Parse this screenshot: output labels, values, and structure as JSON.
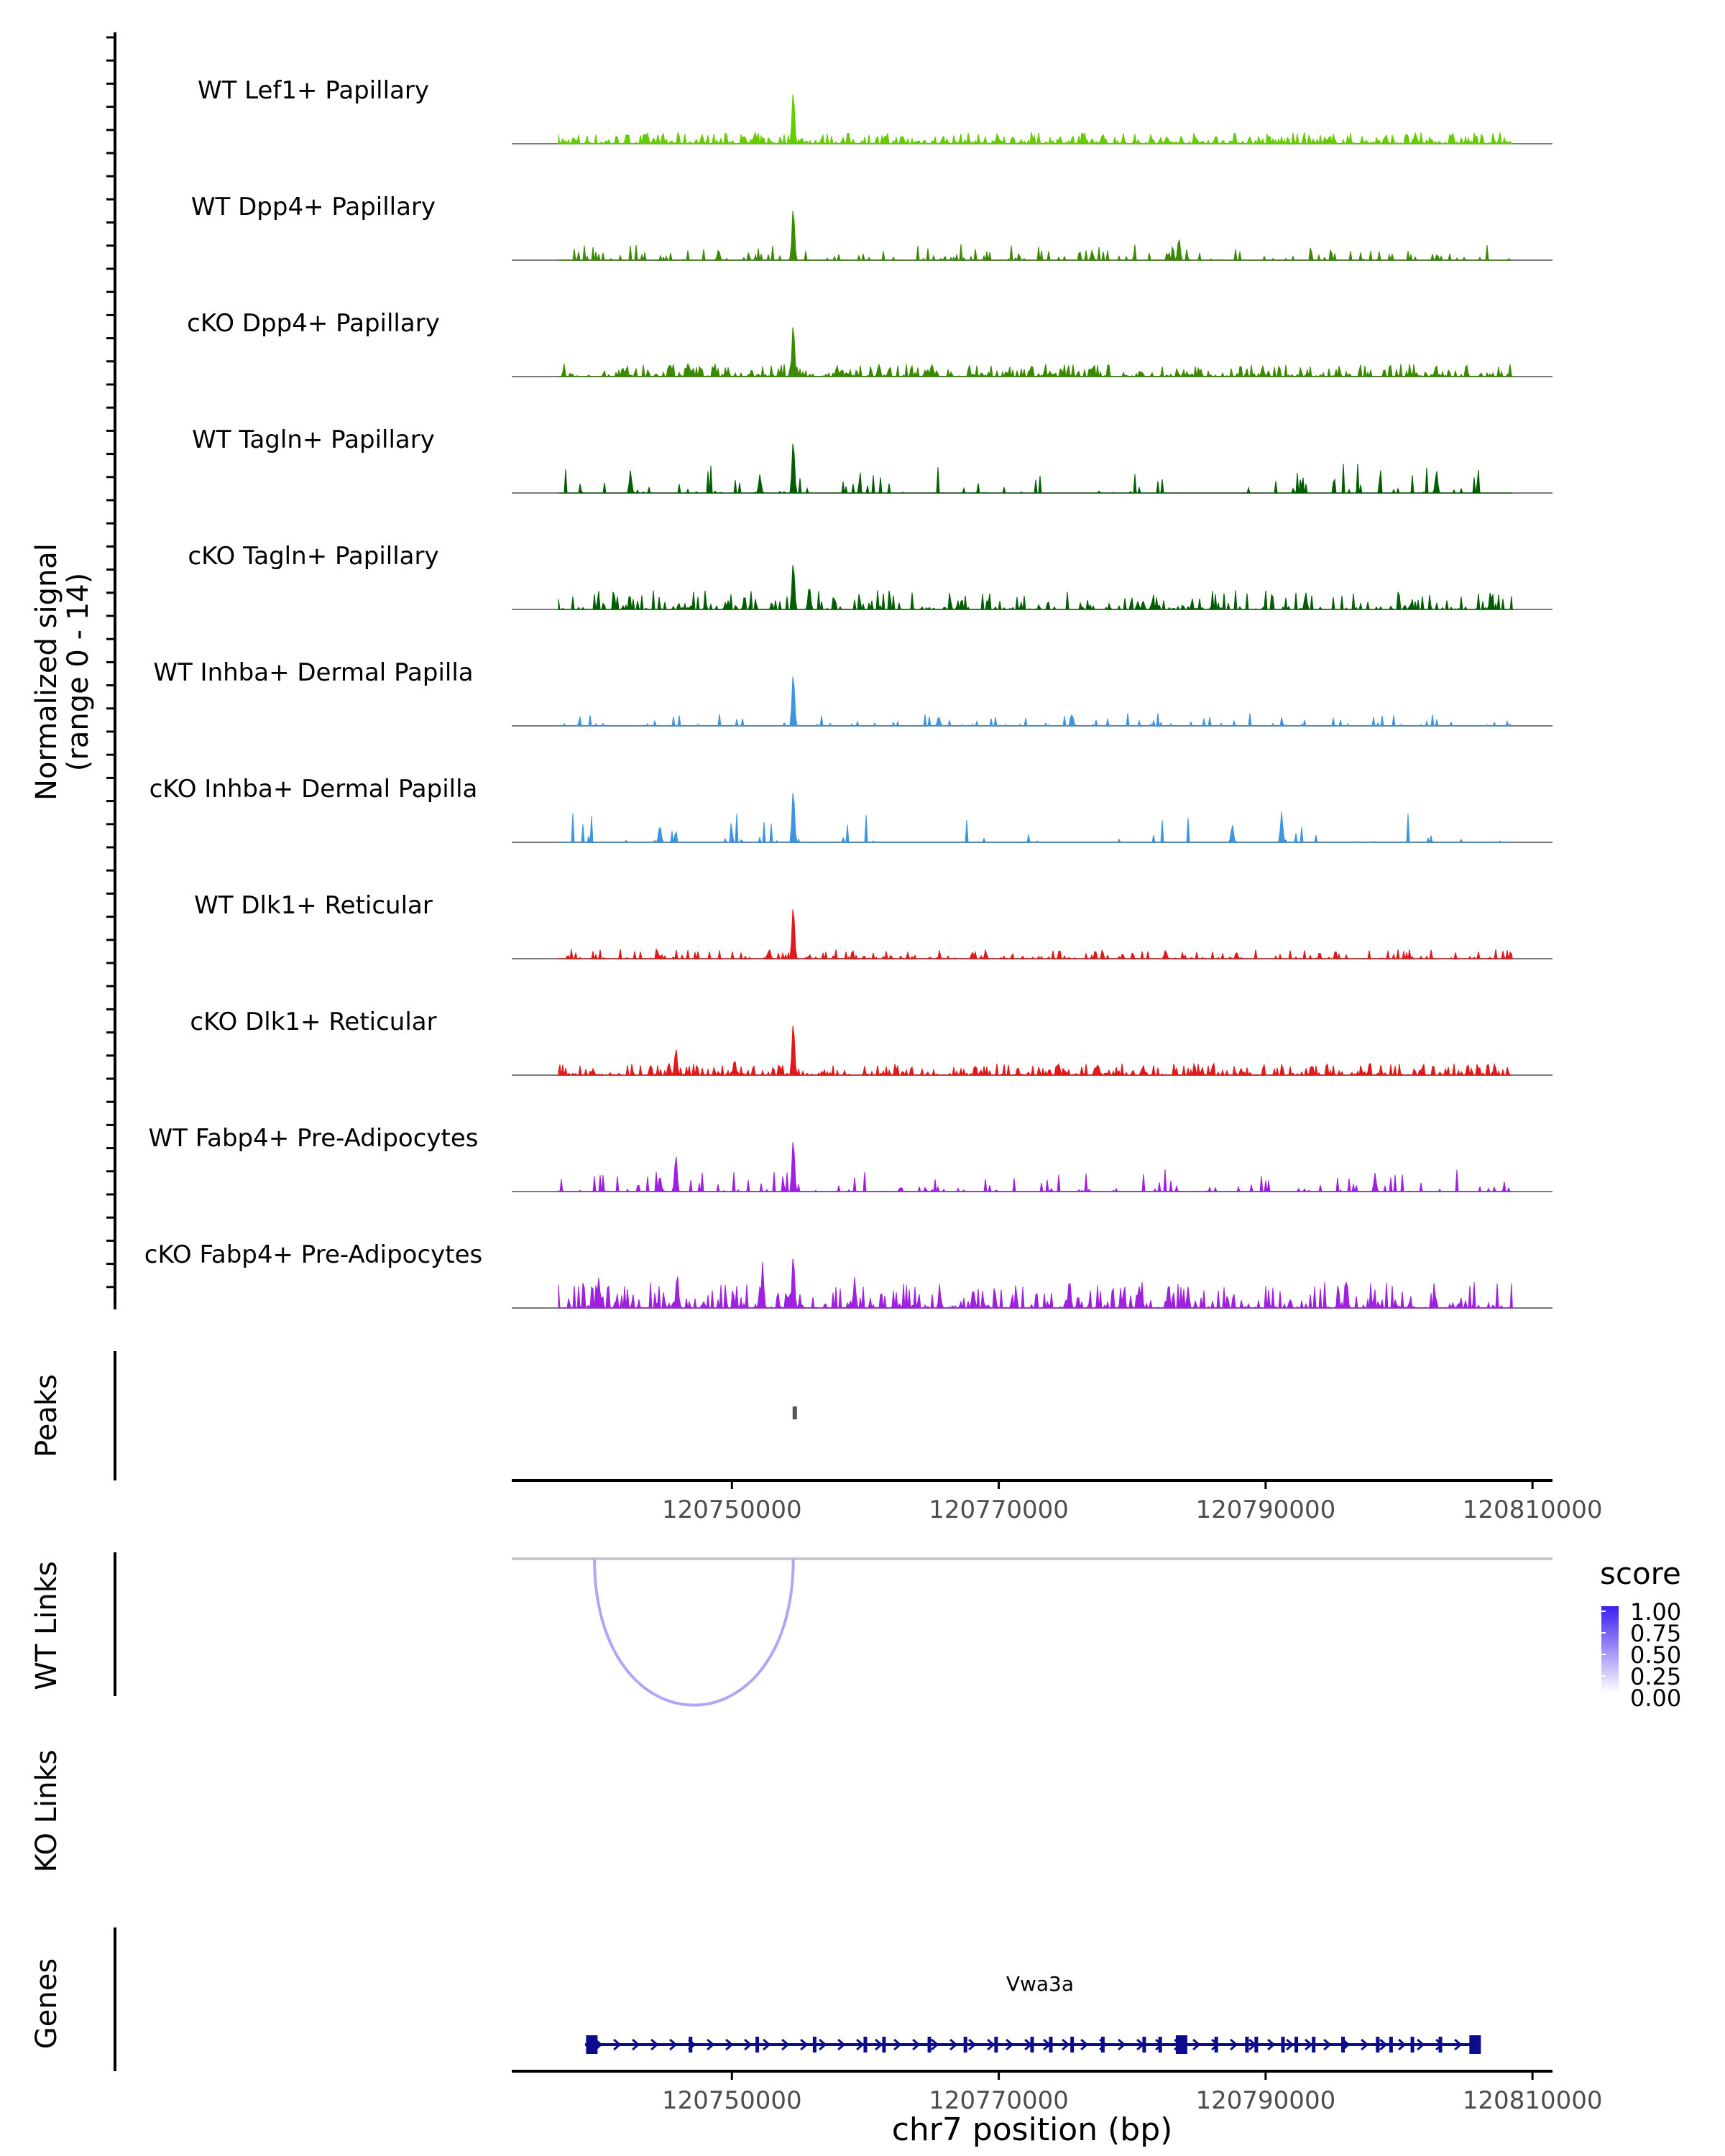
{
  "chart_data": {
    "type": "area",
    "title": "",
    "region": "chr7",
    "x_range": [
      120733500,
      120811500
    ],
    "coverage": {
      "ylabel_line1": "Normalized signal",
      "ylabel_line2": "(range 0 - 14)",
      "yrange": [
        0,
        14
      ],
      "tracks": [
        {
          "label": "WT Lef1+ Papillary",
          "color": "#66cc00",
          "density": 1.0,
          "noise": 0.18,
          "peaks": [
            [
              120754600,
              1.0
            ],
            [
              120751800,
              0.12
            ],
            [
              120738200,
              0.08
            ]
          ]
        },
        {
          "label": "WT Dpp4+ Papillary",
          "color": "#3a8a00",
          "density": 0.35,
          "noise": 0.25,
          "peaks": [
            [
              120754600,
              1.0
            ],
            [
              120783500,
              0.42
            ],
            [
              120749000,
              0.2
            ],
            [
              120777000,
              0.15
            ]
          ]
        },
        {
          "label": "cKO Dpp4+ Papillary",
          "color": "#3a8a00",
          "density": 0.8,
          "noise": 0.2,
          "peaks": [
            [
              120754600,
              1.0
            ],
            [
              120761000,
              0.22
            ],
            [
              120746800,
              0.15
            ]
          ]
        },
        {
          "label": "WT Tagln+ Papillary",
          "color": "#005e00",
          "density": 0.15,
          "noise": 0.45,
          "peaks": [
            [
              120754600,
              1.0
            ],
            [
              120802800,
              0.4
            ],
            [
              120742400,
              0.38
            ],
            [
              120752100,
              0.32
            ]
          ]
        },
        {
          "label": "cKO Tagln+ Papillary",
          "color": "#005e00",
          "density": 0.55,
          "noise": 0.3,
          "peaks": [
            [
              120754600,
              0.9
            ],
            [
              120755800,
              0.45
            ],
            [
              120793000,
              0.3
            ]
          ]
        },
        {
          "label": "WT Inhba+ Dermal Papilla",
          "color": "#3d95e0",
          "density": 0.22,
          "noise": 0.2,
          "peaks": [
            [
              120754600,
              1.0
            ],
            [
              120765500,
              0.18
            ],
            [
              120775500,
              0.22
            ]
          ]
        },
        {
          "label": "cKO Inhba+ Dermal Papilla",
          "color": "#3d95e0",
          "density": 0.1,
          "noise": 0.45,
          "peaks": [
            [
              120754600,
              1.0
            ],
            [
              120791200,
              0.5
            ],
            [
              120787500,
              0.32
            ],
            [
              120744600,
              0.32
            ]
          ]
        },
        {
          "label": "WT Dlk1+ Reticular",
          "color": "#e01a1a",
          "density": 0.45,
          "noise": 0.15,
          "peaks": [
            [
              120754600,
              1.0
            ],
            [
              120752800,
              0.18
            ],
            [
              120782500,
              0.16
            ]
          ]
        },
        {
          "label": "cKO Dlk1+ Reticular",
          "color": "#e01a1a",
          "density": 0.85,
          "noise": 0.18,
          "peaks": [
            [
              120754600,
              1.0
            ],
            [
              120745800,
              0.5
            ],
            [
              120750200,
              0.3
            ]
          ]
        },
        {
          "label": "WT Fabp4+ Pre-Adipocytes",
          "color": "#a020e0",
          "density": 0.25,
          "noise": 0.35,
          "peaks": [
            [
              120754600,
              1.0
            ],
            [
              120745800,
              0.68
            ],
            [
              120744600,
              0.3
            ],
            [
              120798200,
              0.3
            ]
          ]
        },
        {
          "label": "cKO Fabp4+ Pre-Adipocytes",
          "color": "#a020e0",
          "density": 0.7,
          "noise": 0.4,
          "peaks": [
            [
              120754600,
              1.0
            ],
            [
              120752300,
              0.72
            ],
            [
              120745900,
              0.65
            ],
            [
              120775300,
              0.55
            ],
            [
              120759200,
              0.5
            ],
            [
              120740000,
              0.52
            ]
          ]
        }
      ]
    },
    "peaks_track": {
      "label": "Peaks",
      "peaks": [
        [
          120754550,
          120754750
        ]
      ],
      "color": "#555555"
    },
    "xaxis": {
      "ticks": [
        120750000,
        120770000,
        120790000,
        120810000
      ],
      "tick_labels": [
        "120750000",
        "120770000",
        "120790000",
        "120810000"
      ]
    },
    "links_wt": {
      "label": "WT Links",
      "links": [
        {
          "start": 120739700,
          "end": 120754600,
          "score": 0.4
        }
      ]
    },
    "links_ko": {
      "label": "KO Links",
      "links": []
    },
    "score_legend": {
      "title": "score",
      "labels": [
        "1.00",
        "0.75",
        "0.50",
        "0.25",
        "0.00"
      ],
      "color_low": "#ffffff",
      "color_high": "#3b1ef0"
    },
    "genes": {
      "label": "Genes",
      "gene_name": "Vwa3a",
      "color": "#0b0b8c",
      "start": 120739000,
      "end": 120806100,
      "exons": [
        120739500,
        120746900,
        120751900,
        120756200,
        120760000,
        120761400,
        120764800,
        120767500,
        120769800,
        120772500,
        120773900,
        120775500,
        120777800,
        120780900,
        120782100,
        120783700,
        120786300,
        120788600,
        120789300,
        120791300,
        120792300,
        120793600,
        120795800,
        120798400,
        120799400,
        120801000,
        120803100,
        120805700
      ]
    },
    "xlabel": "chr7 position (bp)"
  }
}
